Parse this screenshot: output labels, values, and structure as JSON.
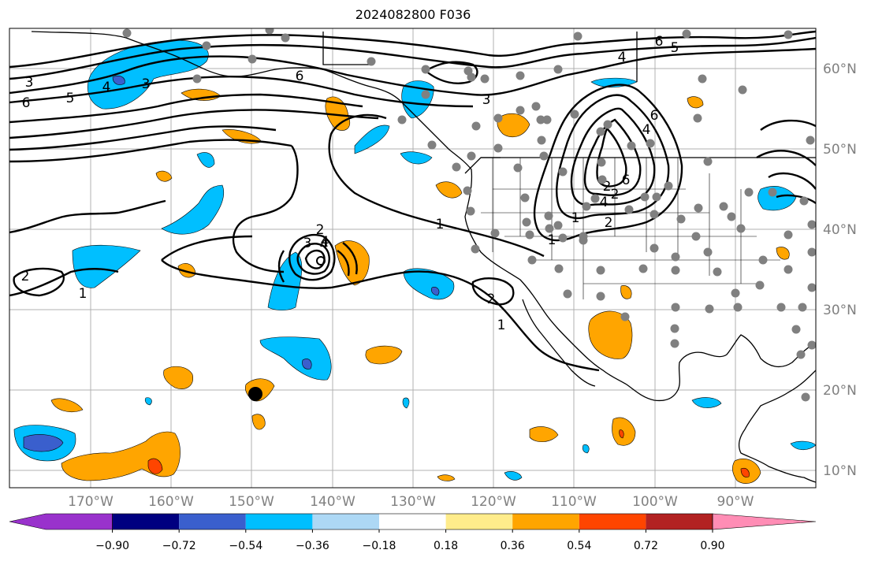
{
  "title": "2024082800 F036",
  "lon_labels": [
    "170°W",
    "160°W",
    "150°W",
    "140°W",
    "130°W",
    "120°W",
    "110°W",
    "100°W",
    "90°W"
  ],
  "lat_labels": [
    "60°N",
    "50°N",
    "40°N",
    "30°N",
    "20°N",
    "10°N"
  ],
  "colorbar": {
    "tick_labels": [
      "−0.90",
      "−0.72",
      "−0.54",
      "−0.36",
      "−0.18",
      "0.18",
      "0.36",
      "0.54",
      "0.72",
      "0.90"
    ],
    "colors": [
      "#9932CC",
      "#000080",
      "#3A5FCD",
      "#00BFFF",
      "#ADD8F5",
      "#FFFFFF",
      "#FFEC8B",
      "#FFA500",
      "#FF4500",
      "#B22222",
      "#FF8DB5"
    ]
  },
  "contour_labels": [
    "6",
    "5",
    "3",
    "4",
    "3",
    "6",
    "5",
    "4",
    "6",
    "3",
    "6",
    "4",
    "2",
    "4",
    "2",
    "1",
    "2",
    "1",
    "1",
    "2",
    "3",
    "4",
    "2",
    "1",
    "6",
    "4",
    "2",
    "1"
  ],
  "fill_colors": {
    "blue": "#00BFFF",
    "dark_blue": "#3A5FCD",
    "orange": "#FFA500",
    "red": "#FF4500"
  },
  "station_color": "#808080"
}
